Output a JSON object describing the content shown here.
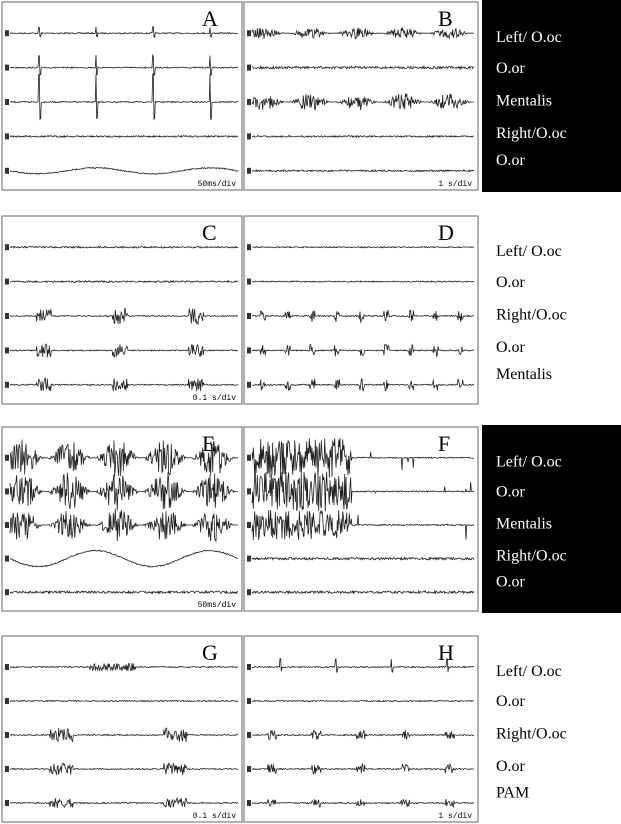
{
  "panels": [
    {
      "letter": "A",
      "scale": "50ms/div"
    },
    {
      "letter": "B",
      "scale": "1 s/div"
    },
    {
      "letter": "C",
      "scale": "0.1 s/div"
    },
    {
      "letter": "D"
    },
    {
      "letter": "E",
      "scale": "50ms/div"
    },
    {
      "letter": "F"
    },
    {
      "letter": "G",
      "scale": "0.1 s/div"
    },
    {
      "letter": "H",
      "scale": "1 s/div"
    }
  ],
  "label_boxes": [
    {
      "labels": [
        "Left/ O.oc",
        "O.or",
        "Mentalis",
        "Right/O.oc",
        "O.or"
      ]
    },
    {
      "labels": [
        "Left/ O.oc",
        "O.or",
        "Right/O.oc",
        "O.or",
        "Mentalis"
      ]
    },
    {
      "labels": [
        "Left/ O.oc",
        "O.or",
        "Mentalis",
        "Right/O.oc",
        "O.or"
      ]
    },
    {
      "labels": [
        "Left/ O.oc",
        "O.or",
        "Right/O.oc",
        "O.or",
        "PAM"
      ]
    }
  ]
}
